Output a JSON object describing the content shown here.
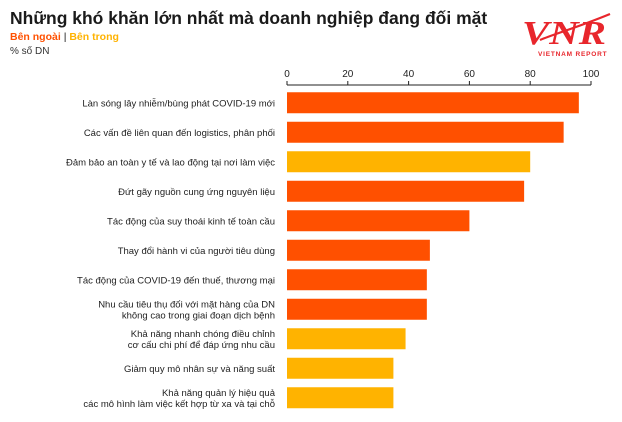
{
  "chart_data": {
    "type": "bar",
    "orientation": "horizontal",
    "title": "Những khó khăn lớn nhất mà doanh nghiệp đang đối mặt",
    "legend": [
      {
        "name": "Bên ngoài",
        "color": "#ff5000"
      },
      {
        "name": "Bên trong",
        "color": "#ffb300"
      }
    ],
    "legend_separator": "|",
    "unit_label": "% số DN",
    "xlim": [
      0,
      100
    ],
    "ticks": [
      0,
      20,
      40,
      60,
      80,
      100
    ],
    "categories": [
      [
        "Làn sóng lây nhiễm/bùng phát COVID-19 mới"
      ],
      [
        "Các vấn đề liên quan đến logistics, phân phối"
      ],
      [
        "Đảm bảo an toàn y tế và lao động tại nơi làm việc"
      ],
      [
        "Đứt gãy nguồn cung ứng nguyên liệu"
      ],
      [
        "Tác động của suy thoái kinh tế toàn cầu"
      ],
      [
        "Thay đổi hành vi của người tiêu dùng"
      ],
      [
        "Tác động của COVID-19 đến thuế, thương mại"
      ],
      [
        "Nhu cầu tiêu thụ đối với mặt hàng của DN",
        "không cao trong giai đoạn dịch bệnh"
      ],
      [
        "Khả năng nhanh chóng điều chỉnh",
        "cơ cấu chi phí để đáp ứng nhu cầu"
      ],
      [
        "Giảm quy mô nhân sự và năng suất"
      ],
      [
        "Khả năng quản lý hiệu quả",
        "các mô hình làm việc kết hợp từ xa và tại chỗ"
      ]
    ],
    "values": [
      96,
      91,
      80,
      78,
      60,
      47,
      46,
      46,
      39,
      35,
      35
    ],
    "groups": [
      "Bên ngoài",
      "Bên ngoài",
      "Bên trong",
      "Bên ngoài",
      "Bên ngoài",
      "Bên ngoài",
      "Bên ngoài",
      "Bên ngoài",
      "Bên trong",
      "Bên trong",
      "Bên trong"
    ],
    "grid": false
  },
  "logo": {
    "mark": "VNR",
    "subtitle": "VIETNAM REPORT",
    "color": "#e8262c"
  }
}
